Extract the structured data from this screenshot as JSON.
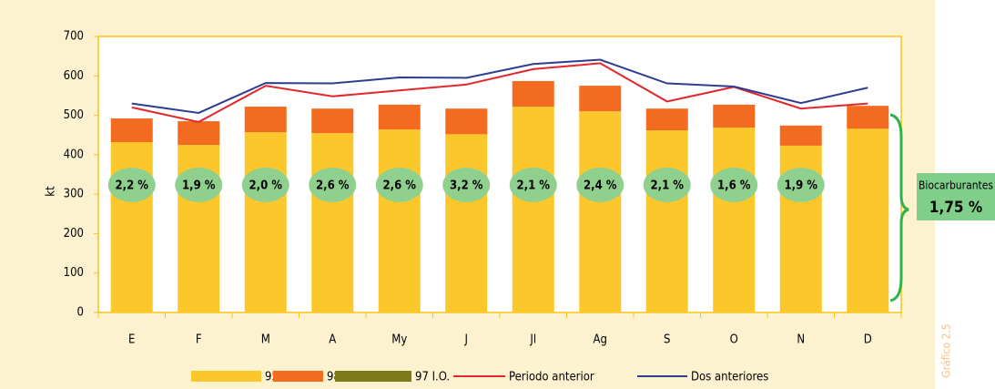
{
  "chart_data": {
    "type": "bar",
    "y_label": "kt",
    "categories": [
      "E",
      "F",
      "M",
      "A",
      "My",
      "J",
      "Jl",
      "Ag",
      "S",
      "O",
      "N",
      "D"
    ],
    "series": [
      {
        "name": "95 I.O.",
        "type": "bar",
        "color": "#fcc72a",
        "values": [
          432,
          425,
          457,
          455,
          464,
          452,
          522,
          510,
          462,
          469,
          423,
          466
        ]
      },
      {
        "name": "98 I.O.",
        "type": "bar",
        "color": "#f26b21",
        "values": [
          60,
          60,
          65,
          62,
          63,
          65,
          65,
          65,
          55,
          58,
          51,
          58
        ]
      },
      {
        "name": "97 I.O.",
        "type": "bar",
        "color": "#7d7a1c",
        "values": [
          0,
          0,
          0,
          0,
          0,
          0,
          0,
          0,
          0,
          0,
          0,
          0
        ]
      },
      {
        "name": "Periodo anterior",
        "type": "line",
        "color": "#e3262b",
        "values": [
          520,
          483,
          575,
          548,
          563,
          578,
          617,
          632,
          535,
          572,
          517,
          530
        ]
      },
      {
        "name": "Dos anteriores",
        "type": "line",
        "color": "#2e3d8f",
        "values": [
          530,
          506,
          582,
          581,
          596,
          595,
          630,
          641,
          581,
          573,
          531,
          570
        ]
      }
    ],
    "biofuel": {
      "values": [
        2.2,
        1.9,
        2.0,
        2.6,
        2.6,
        3.2,
        2.1,
        2.4,
        2.1,
        1.6,
        1.9,
        null
      ],
      "value_labels": [
        "2,2 %",
        "1,9 %",
        "2,0 %",
        "2,6 %",
        "2,6 %",
        "3,2 %",
        "2,1 %",
        "2,4 %",
        "2,1 %",
        "1,6 %",
        "1,9 %",
        null
      ],
      "color": "#8fd08f"
    },
    "total_box": {
      "title": "Biocarburantes",
      "value": 1.75,
      "value_label": "1,75 %",
      "color": "#7fcf8a"
    },
    "figure_label": "Gráfico 2.5",
    "ylim": [
      0,
      700
    ],
    "yticks": [
      0,
      100,
      200,
      300,
      400,
      500,
      600,
      700
    ],
    "grid": false
  }
}
